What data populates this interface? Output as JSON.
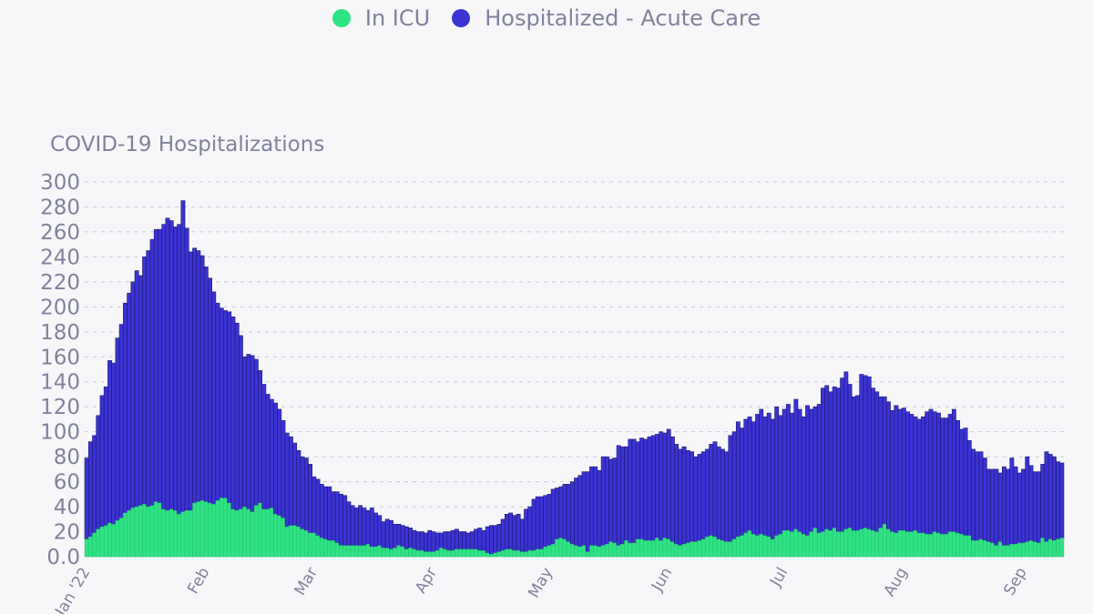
{
  "legend": {
    "icu_label": "In ICU",
    "acute_label": "Hospitalized - Acute Care"
  },
  "colors": {
    "icu": "#2fe283",
    "acute": "#3b33d4",
    "acute_edge": "#1c1870",
    "text": "#80829c",
    "background": "#f7f7f9"
  },
  "chart_data": {
    "type": "bar",
    "stacked": true,
    "title": "COVID-19 Hospitalizations",
    "xlabel": "",
    "ylabel": "",
    "ylim": [
      0,
      300
    ],
    "yticks": [
      "0.0",
      "20",
      "40",
      "60",
      "80",
      "100",
      "120",
      "140",
      "160",
      "180",
      "200",
      "220",
      "240",
      "260",
      "280",
      "300"
    ],
    "x_start": "2022-01-01",
    "x_interval": "day",
    "xticks": [
      {
        "label": "Jan '22",
        "day": 0
      },
      {
        "label": "Feb",
        "day": 31
      },
      {
        "label": "Mar",
        "day": 59
      },
      {
        "label": "Apr",
        "day": 90
      },
      {
        "label": "May",
        "day": 120
      },
      {
        "label": "Jun",
        "day": 151
      },
      {
        "label": "Jul",
        "day": 181
      },
      {
        "label": "Aug",
        "day": 212
      },
      {
        "label": "Sep",
        "day": 243
      }
    ],
    "grid": true,
    "legend_position": "top-center",
    "series": [
      {
        "name": "In ICU",
        "values": [
          14,
          16,
          19,
          22,
          24,
          25,
          27,
          26,
          29,
          31,
          35,
          37,
          39,
          40,
          41,
          42,
          40,
          41,
          44,
          43,
          38,
          37,
          38,
          37,
          34,
          36,
          37,
          37,
          43,
          44,
          45,
          44,
          43,
          42,
          45,
          47,
          47,
          43,
          38,
          37,
          38,
          40,
          38,
          36,
          41,
          43,
          38,
          38,
          39,
          34,
          33,
          31,
          24,
          25,
          25,
          24,
          22,
          21,
          19,
          19,
          17,
          15,
          14,
          13,
          13,
          11,
          9,
          9,
          9,
          9,
          9,
          9,
          9,
          10,
          8,
          8,
          9,
          7,
          7,
          6,
          7,
          9,
          8,
          6,
          7,
          6,
          5,
          5,
          4,
          4,
          4,
          5,
          7,
          6,
          5,
          5,
          6,
          6,
          6,
          6,
          6,
          6,
          5,
          5,
          3,
          2,
          3,
          4,
          5,
          6,
          6,
          5,
          5,
          4,
          4,
          5,
          5,
          6,
          6,
          8,
          9,
          10,
          14,
          15,
          14,
          12,
          10,
          9,
          8,
          9,
          4,
          9,
          9,
          8,
          9,
          10,
          12,
          11,
          9,
          10,
          13,
          11,
          11,
          14,
          14,
          13,
          13,
          13,
          15,
          13,
          15,
          14,
          12,
          10,
          9,
          10,
          11,
          12,
          12,
          13,
          14,
          16,
          17,
          16,
          14,
          13,
          12,
          12,
          14,
          16,
          17,
          19,
          21,
          18,
          17,
          18,
          17,
          16,
          14,
          17,
          18,
          21,
          21,
          20,
          22,
          20,
          18,
          17,
          20,
          23,
          19,
          20,
          22,
          21,
          23,
          20,
          20,
          22,
          23,
          21,
          21,
          22,
          23,
          22,
          21,
          20,
          23,
          26,
          22,
          20,
          19,
          21,
          21,
          20,
          20,
          21,
          19,
          19,
          18,
          18,
          20,
          19,
          18,
          18,
          20,
          20,
          19,
          18,
          17,
          17,
          13,
          13,
          14,
          13,
          12,
          11,
          9,
          12,
          9,
          9,
          10,
          10,
          11,
          11,
          12,
          13,
          12,
          11,
          15,
          12,
          14,
          13,
          14,
          15
        ]
      },
      {
        "name": "Hospitalized - Acute Care",
        "values": [
          65,
          76,
          78,
          91,
          105,
          111,
          130,
          129,
          146,
          155,
          168,
          174,
          181,
          189,
          184,
          198,
          205,
          213,
          218,
          219,
          228,
          234,
          231,
          227,
          232,
          249,
          226,
          207,
          204,
          201,
          196,
          188,
          180,
          170,
          158,
          152,
          150,
          153,
          154,
          150,
          139,
          120,
          124,
          125,
          117,
          106,
          100,
          92,
          87,
          89,
          85,
          78,
          75,
          71,
          66,
          61,
          58,
          58,
          55,
          45,
          45,
          43,
          42,
          43,
          39,
          41,
          41,
          40,
          35,
          32,
          30,
          32,
          30,
          27,
          31,
          27,
          24,
          21,
          23,
          23,
          19,
          17,
          17,
          18,
          16,
          15,
          15,
          15,
          15,
          17,
          16,
          14,
          12,
          14,
          15,
          16,
          16,
          14,
          14,
          13,
          14,
          16,
          18,
          16,
          21,
          23,
          22,
          22,
          25,
          28,
          29,
          28,
          29,
          26,
          34,
          35,
          41,
          42,
          42,
          41,
          41,
          44,
          41,
          41,
          44,
          46,
          50,
          54,
          57,
          59,
          64,
          63,
          63,
          61,
          71,
          70,
          66,
          68,
          80,
          78,
          75,
          83,
          83,
          78,
          81,
          81,
          83,
          84,
          83,
          87,
          84,
          88,
          84,
          80,
          77,
          78,
          74,
          72,
          68,
          69,
          70,
          70,
          73,
          76,
          74,
          73,
          72,
          85,
          86,
          92,
          86,
          91,
          91,
          90,
          97,
          100,
          95,
          99,
          96,
          103,
          95,
          97,
          101,
          95,
          104,
          98,
          94,
          104,
          98,
          97,
          103,
          115,
          115,
          111,
          113,
          115,
          123,
          126,
          115,
          107,
          108,
          124,
          122,
          122,
          114,
          112,
          105,
          102,
          102,
          97,
          102,
          97,
          98,
          96,
          94,
          91,
          91,
          93,
          98,
          100,
          96,
          96,
          93,
          93,
          94,
          98,
          90,
          84,
          86,
          76,
          73,
          71,
          70,
          66,
          58,
          59,
          61,
          55,
          63,
          61,
          69,
          62,
          56,
          59,
          68,
          60,
          56,
          57,
          59,
          72,
          68,
          67,
          62,
          60
        ]
      }
    ]
  }
}
